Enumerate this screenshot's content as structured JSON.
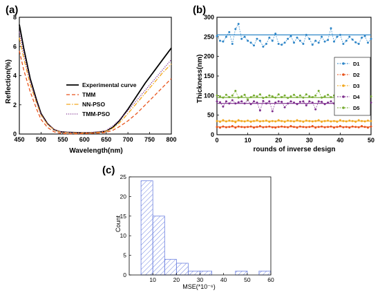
{
  "chart_data": [
    {
      "panel": "(a)",
      "type": "line",
      "xlabel": "Wavelength(nm)",
      "ylabel": "Reflection(%)",
      "xlim": [
        450,
        800
      ],
      "ylim": [
        0,
        8
      ],
      "xticks": [
        450,
        500,
        550,
        600,
        650,
        700,
        750,
        800
      ],
      "yticks": [
        0,
        2,
        4,
        6,
        8
      ],
      "legend_position": "right",
      "series": [
        {
          "name": "Experimental curve",
          "color": "#000000",
          "style": "solid",
          "x": [
            450,
            460,
            475,
            490,
            500,
            515,
            530,
            545,
            560,
            580,
            600,
            620,
            640,
            650,
            665,
            680,
            700,
            720,
            740,
            760,
            780,
            800
          ],
          "y": [
            7.5,
            5.9,
            3.8,
            2.3,
            1.4,
            0.7,
            0.3,
            0.15,
            0.12,
            0.1,
            0.08,
            0.1,
            0.15,
            0.2,
            0.45,
            0.9,
            1.7,
            2.6,
            3.5,
            4.3,
            5.1,
            5.9
          ]
        },
        {
          "name": "TMM",
          "color": "#e8521a",
          "style": "dashed",
          "x": [
            450,
            460,
            475,
            490,
            500,
            515,
            530,
            545,
            560,
            580,
            600,
            620,
            640,
            650,
            665,
            680,
            700,
            720,
            740,
            760,
            780,
            800
          ],
          "y": [
            5.7,
            4.4,
            2.9,
            1.7,
            1.0,
            0.45,
            0.15,
            0.05,
            0.02,
            0.02,
            0.03,
            0.05,
            0.08,
            0.12,
            0.25,
            0.5,
            0.9,
            1.4,
            2.0,
            2.6,
            3.2,
            3.8
          ]
        },
        {
          "name": "NN-PSO",
          "color": "#f2a81d",
          "style": "dashdot",
          "x": [
            450,
            460,
            475,
            490,
            500,
            515,
            530,
            545,
            560,
            580,
            600,
            620,
            640,
            650,
            665,
            680,
            700,
            720,
            740,
            760,
            780,
            800
          ],
          "y": [
            6.6,
            5.2,
            3.4,
            2.1,
            1.3,
            0.65,
            0.3,
            0.14,
            0.1,
            0.08,
            0.08,
            0.1,
            0.14,
            0.2,
            0.4,
            0.75,
            1.4,
            2.1,
            2.8,
            3.5,
            4.2,
            4.8
          ]
        },
        {
          "name": "TMM-PSO",
          "color": "#7e2f8e",
          "style": "dotted",
          "x": [
            450,
            460,
            475,
            490,
            500,
            515,
            530,
            545,
            560,
            580,
            600,
            620,
            640,
            650,
            665,
            680,
            700,
            720,
            740,
            760,
            780,
            800
          ],
          "y": [
            7.0,
            5.5,
            3.6,
            2.2,
            1.35,
            0.7,
            0.32,
            0.16,
            0.13,
            0.1,
            0.1,
            0.12,
            0.18,
            0.25,
            0.55,
            0.95,
            1.6,
            2.3,
            3.0,
            3.7,
            4.4,
            5.1
          ]
        }
      ]
    },
    {
      "panel": "(b)",
      "type": "line",
      "xlabel": "rounds of inverse design",
      "ylabel": "Thickness(nm)",
      "xlim": [
        0,
        50
      ],
      "ylim": [
        0,
        300
      ],
      "xticks": [
        0,
        10,
        20,
        30,
        40,
        50
      ],
      "yticks": [
        0,
        50,
        100,
        150,
        200,
        250,
        300
      ],
      "legend_position": "right",
      "series": [
        {
          "name": "D1",
          "color": "#2e86c8",
          "marker": "circle",
          "target": 255,
          "values": [
            252,
            240,
            238,
            250,
            262,
            232,
            270,
            283,
            245,
            250,
            240,
            235,
            228,
            245,
            240,
            225,
            232,
            248,
            240,
            258,
            232,
            230,
            235,
            245,
            252,
            235,
            248,
            240,
            232,
            255,
            245,
            230,
            240,
            235,
            250,
            238,
            242,
            272,
            238,
            250,
            255,
            232,
            240,
            250,
            243,
            236,
            232,
            248,
            252,
            235,
            245
          ]
        },
        {
          "name": "D2",
          "color": "#e8521a",
          "marker": "circle",
          "target": 20,
          "values": [
            20,
            18,
            21,
            19,
            20,
            22,
            18,
            21,
            20,
            19,
            20,
            21,
            18,
            20,
            22,
            19,
            20,
            21,
            19,
            18,
            20,
            21,
            20,
            19,
            22,
            20,
            18,
            21,
            20,
            19,
            20,
            22,
            18,
            20,
            21,
            19,
            20,
            21,
            18,
            20,
            22,
            19,
            20,
            18,
            21,
            20,
            19,
            22,
            20,
            18,
            21
          ]
        },
        {
          "name": "D3",
          "color": "#f2a81d",
          "marker": "circle",
          "target": 35,
          "values": [
            35,
            33,
            37,
            34,
            36,
            35,
            32,
            37,
            35,
            34,
            36,
            33,
            35,
            37,
            34,
            35,
            36,
            33,
            35,
            34,
            37,
            35,
            33,
            36,
            35,
            34,
            37,
            35,
            33,
            36,
            35,
            34,
            35,
            37,
            33,
            35,
            36,
            34,
            35,
            33,
            37,
            35,
            34,
            36,
            35,
            33,
            37,
            35,
            34,
            36,
            35
          ]
        },
        {
          "name": "D4",
          "color": "#7e2f8e",
          "marker": "circle",
          "target": 80,
          "values": [
            85,
            83,
            72,
            85,
            80,
            88,
            80,
            83,
            85,
            80,
            88,
            78,
            85,
            82,
            62,
            86,
            80,
            85,
            60,
            82,
            85,
            84,
            70,
            80,
            85,
            82,
            78,
            84,
            85,
            75,
            85,
            82,
            65,
            85,
            84,
            78,
            82,
            85,
            80,
            75,
            84,
            85,
            82,
            86,
            62,
            58,
            84,
            85,
            80,
            78,
            82
          ]
        },
        {
          "name": "D5",
          "color": "#77ac30",
          "marker": "circle",
          "target": 95,
          "values": [
            100,
            98,
            95,
            102,
            96,
            100,
            112,
            95,
            98,
            102,
            90,
            96,
            100,
            98,
            103,
            94,
            96,
            100,
            98,
            95,
            103,
            96,
            100,
            94,
            98,
            102,
            96,
            100,
            95,
            103,
            98,
            96,
            100,
            112,
            95,
            98,
            102,
            96,
            100,
            94,
            98,
            112,
            96,
            100,
            103,
            95,
            98,
            102,
            96,
            100,
            98
          ]
        }
      ]
    },
    {
      "panel": "(c)",
      "type": "bar",
      "xlabel": "MSE(*10⁻⁶)",
      "ylabel": "Count",
      "xlim": [
        0,
        60
      ],
      "ylim": [
        0,
        25
      ],
      "xticks": [
        10,
        20,
        30,
        40,
        50,
        60
      ],
      "yticks": [
        0,
        5,
        10,
        15,
        20,
        25
      ],
      "bin_width": 5,
      "bin_starts": [
        5,
        10,
        15,
        20,
        25,
        30,
        35,
        40,
        45,
        50,
        55
      ],
      "values": [
        24,
        15,
        4,
        3,
        1,
        1,
        0,
        0,
        1,
        0,
        1
      ],
      "bar_color": "#6b80e0"
    }
  ]
}
